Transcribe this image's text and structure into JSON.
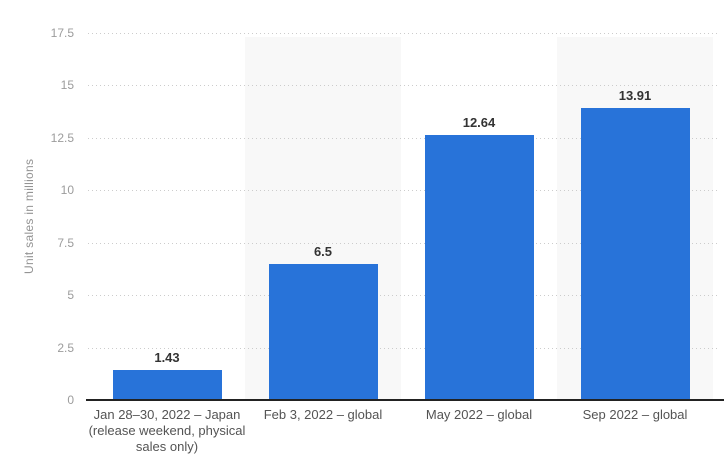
{
  "chart_data": {
    "type": "bar",
    "title": "",
    "xlabel": "",
    "ylabel": "Unit sales in millions",
    "ylim": [
      0,
      17.5
    ],
    "yticks": [
      0,
      2.5,
      5,
      7.5,
      10,
      12.5,
      15,
      17.5
    ],
    "ytick_labels": [
      "0",
      "2.5",
      "5",
      "7.5",
      "10",
      "12.5",
      "15",
      "17.5"
    ],
    "categories": [
      "Jan 28–30, 2022 – Japan\n(release weekend, physical\nsales only)",
      "Feb 3, 2022 – global",
      "May 2022 – global",
      "Sep 2022 – global"
    ],
    "values": [
      1.43,
      6.5,
      12.64,
      13.91
    ],
    "value_labels": [
      "1.43",
      "6.5",
      "12.64",
      "13.91"
    ],
    "grid": "horizontal dotted",
    "legend": "none",
    "shaded_columns": [
      1,
      3
    ],
    "colors": {
      "bar": "#2873d9",
      "plot_band": "#f8f8f8",
      "gridline": "#cccccc",
      "axis_line": "#222222",
      "y_tick_label": "#9c9c9c",
      "y_axis_title": "#949494",
      "category_label": "#545454",
      "value_label": "#333333",
      "background": "#ffffff"
    }
  }
}
